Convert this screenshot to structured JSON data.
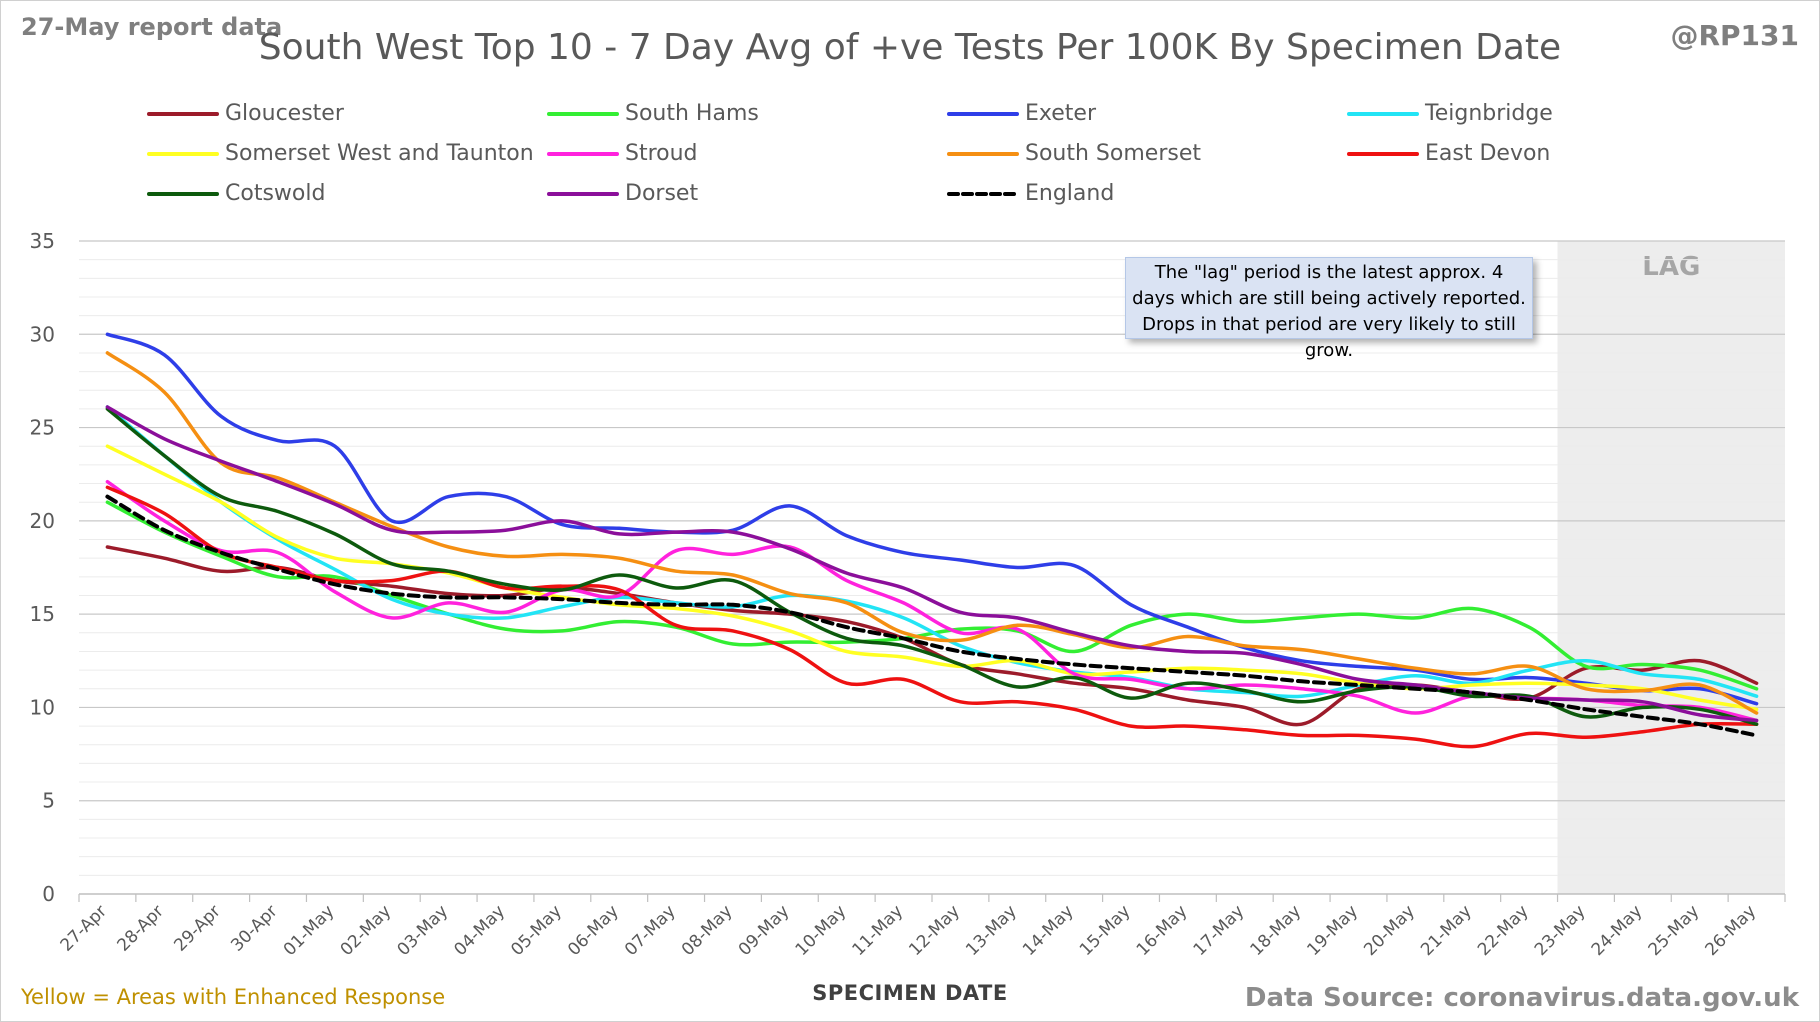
{
  "header": {
    "report_label": "27-May report data",
    "handle": "@RP131"
  },
  "footer": {
    "note": "Yellow = Areas with Enhanced Response",
    "source": "Data Source: coronavirus.data.gov.uk"
  },
  "annotation": {
    "text": "The \"lag\" period is the latest approx. 4 days which are still being actively reported. Drops in that period are very likely to still grow.",
    "lag_label": "LAG"
  },
  "chart_data": {
    "type": "line",
    "title": "South West Top 10 - 7 Day Avg of +ve Tests Per 100K By Specimen Date",
    "xlabel": "SPECIMEN DATE",
    "ylabel": "",
    "ylim": [
      0,
      35
    ],
    "yticks": [
      0,
      5,
      10,
      15,
      20,
      25,
      30,
      35
    ],
    "grid": true,
    "minor_grid": true,
    "legend_position": "top",
    "lag_start": "23-May",
    "categories": [
      "27-Apr",
      "28-Apr",
      "29-Apr",
      "30-Apr",
      "01-May",
      "02-May",
      "03-May",
      "04-May",
      "05-May",
      "06-May",
      "07-May",
      "08-May",
      "09-May",
      "10-May",
      "11-May",
      "12-May",
      "13-May",
      "14-May",
      "15-May",
      "16-May",
      "17-May",
      "18-May",
      "19-May",
      "20-May",
      "21-May",
      "22-May",
      "23-May",
      "24-May",
      "25-May",
      "26-May"
    ],
    "series": [
      {
        "name": "Gloucester",
        "color": "#9c1b2a",
        "dash": false,
        "values": [
          18.6,
          18.0,
          17.3,
          17.5,
          16.8,
          16.5,
          16.1,
          16.0,
          16.4,
          16.1,
          15.6,
          15.2,
          15.0,
          14.6,
          13.7,
          12.3,
          11.8,
          11.3,
          11.0,
          10.4,
          10.0,
          9.1,
          11.0,
          11.2,
          10.8,
          10.5,
          12.1,
          12.0,
          12.5,
          11.3
        ]
      },
      {
        "name": "South Hams",
        "color": "#33ee33",
        "dash": false,
        "values": [
          21.0,
          19.4,
          18.1,
          17.0,
          17.0,
          16.0,
          15.0,
          14.2,
          14.1,
          14.6,
          14.3,
          13.4,
          13.5,
          13.5,
          13.7,
          14.2,
          14.1,
          13.0,
          14.4,
          15.0,
          14.6,
          14.8,
          15.0,
          14.8,
          15.3,
          14.3,
          12.2,
          12.3,
          12.0,
          11.0
        ]
      },
      {
        "name": "Exeter",
        "color": "#2e3ee8",
        "dash": false,
        "values": [
          30.0,
          28.9,
          25.6,
          24.3,
          24.0,
          20.0,
          21.3,
          21.3,
          19.8,
          19.6,
          19.4,
          19.5,
          20.8,
          19.2,
          18.3,
          17.9,
          17.5,
          17.6,
          15.5,
          14.3,
          13.2,
          12.5,
          12.2,
          12.0,
          11.5,
          11.6,
          11.3,
          10.9,
          11.0,
          10.2
        ]
      },
      {
        "name": "Teignbridge",
        "color": "#22e4f5",
        "dash": false,
        "values": [
          26.1,
          23.5,
          21.0,
          19.0,
          17.4,
          15.8,
          15.0,
          14.8,
          15.4,
          15.9,
          15.6,
          15.4,
          16.0,
          15.7,
          14.8,
          13.3,
          12.4,
          11.9,
          11.6,
          11.0,
          10.8,
          10.6,
          11.2,
          11.7,
          11.3,
          12.0,
          12.5,
          11.8,
          11.5,
          10.6
        ]
      },
      {
        "name": "Somerset West and Taunton",
        "color": "#ffff22",
        "dash": false,
        "values": [
          24.0,
          22.5,
          21.0,
          19.1,
          18.0,
          17.7,
          17.2,
          16.4,
          15.9,
          15.5,
          15.3,
          14.9,
          14.1,
          13.0,
          12.7,
          12.2,
          12.5,
          11.8,
          11.9,
          12.1,
          12.0,
          11.8,
          11.3,
          11.0,
          11.2,
          11.3,
          11.2,
          11.0,
          10.4,
          9.9
        ]
      },
      {
        "name": "Stroud",
        "color": "#ff22dd",
        "dash": false,
        "values": [
          22.1,
          20.0,
          18.4,
          18.3,
          16.2,
          14.8,
          15.6,
          15.1,
          16.3,
          16.0,
          18.4,
          18.2,
          18.6,
          16.8,
          15.6,
          14.0,
          14.2,
          11.8,
          11.5,
          11.0,
          11.2,
          11.0,
          10.6,
          9.7,
          10.6,
          10.5,
          10.4,
          10.1,
          10.0,
          9.3
        ]
      },
      {
        "name": "South Somerset",
        "color": "#f58f12",
        "dash": false,
        "values": [
          29.0,
          26.9,
          23.1,
          22.3,
          21.0,
          19.7,
          18.6,
          18.1,
          18.2,
          18.0,
          17.3,
          17.1,
          16.1,
          15.6,
          14.0,
          13.6,
          14.4,
          13.9,
          13.2,
          13.8,
          13.3,
          13.1,
          12.6,
          12.1,
          11.8,
          12.2,
          11.0,
          10.9,
          11.2,
          9.7
        ]
      },
      {
        "name": "East Devon",
        "color": "#ee1111",
        "dash": false,
        "values": [
          21.8,
          20.4,
          18.3,
          17.5,
          16.8,
          16.8,
          17.3,
          16.4,
          16.5,
          16.3,
          14.4,
          14.1,
          13.1,
          11.3,
          11.5,
          10.3,
          10.3,
          9.9,
          9.0,
          9.0,
          8.8,
          8.5,
          8.5,
          8.3,
          7.9,
          8.6,
          8.4,
          8.7,
          9.1,
          9.1
        ]
      },
      {
        "name": "Cotswold",
        "color": "#0d5a0d",
        "dash": false,
        "values": [
          26.0,
          23.5,
          21.3,
          20.5,
          19.3,
          17.7,
          17.3,
          16.6,
          16.3,
          17.1,
          16.4,
          16.8,
          15.1,
          13.7,
          13.3,
          12.3,
          11.1,
          11.6,
          10.5,
          11.3,
          10.9,
          10.3,
          10.9,
          11.1,
          10.6,
          10.6,
          9.5,
          10.0,
          9.9,
          9.1
        ]
      },
      {
        "name": "Dorset",
        "color": "#8b0f9a",
        "dash": false,
        "values": [
          26.1,
          24.4,
          23.2,
          22.1,
          20.9,
          19.5,
          19.4,
          19.5,
          20.0,
          19.3,
          19.4,
          19.4,
          18.5,
          17.2,
          16.4,
          15.1,
          14.8,
          14.0,
          13.3,
          13.0,
          12.9,
          12.3,
          11.5,
          11.2,
          10.8,
          10.5,
          10.4,
          10.3,
          9.6,
          9.3
        ]
      },
      {
        "name": "England",
        "color": "#000000",
        "dash": true,
        "values": [
          21.3,
          19.5,
          18.3,
          17.4,
          16.6,
          16.1,
          15.9,
          15.9,
          15.8,
          15.6,
          15.5,
          15.5,
          15.1,
          14.3,
          13.7,
          13.0,
          12.6,
          12.3,
          12.1,
          11.9,
          11.7,
          11.4,
          11.2,
          11.0,
          10.8,
          10.4,
          9.9,
          9.5,
          9.1,
          8.5
        ]
      }
    ]
  }
}
